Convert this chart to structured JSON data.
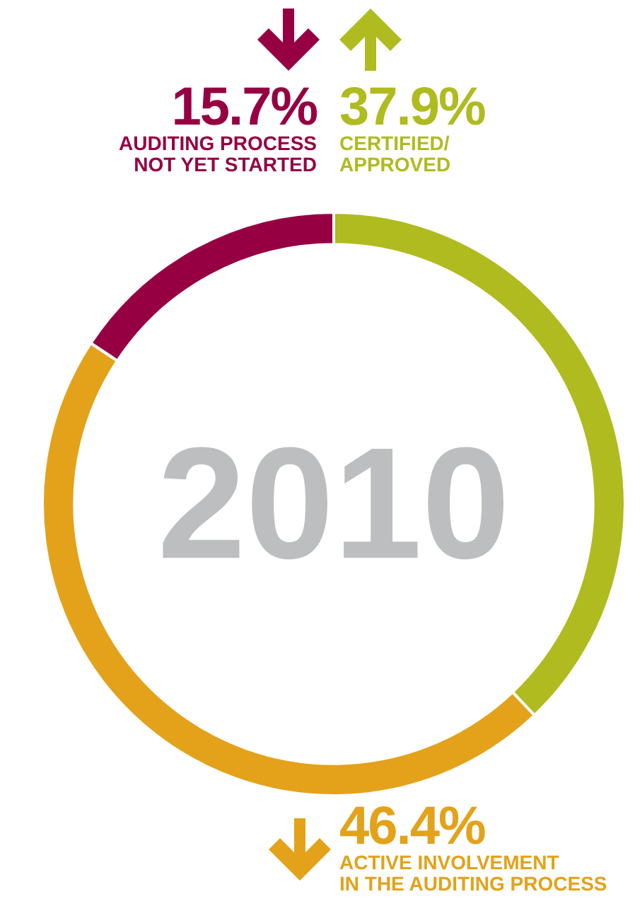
{
  "chart_data": {
    "type": "donut",
    "title": "2010",
    "categories": [
      "CERTIFIED/\nAPPROVED",
      "ACTIVE INVOLVEMENT\nIN THE AUDITING PROCESS",
      "AUDITING PROCESS\nNOT YET STARTED"
    ],
    "values": [
      37.9,
      46.4,
      15.7
    ],
    "value_labels": [
      "37.9%",
      "46.4%",
      "15.7%"
    ],
    "colors": [
      "#b0bb1f",
      "#e3a21a",
      "#960043"
    ],
    "legend": false
  }
}
